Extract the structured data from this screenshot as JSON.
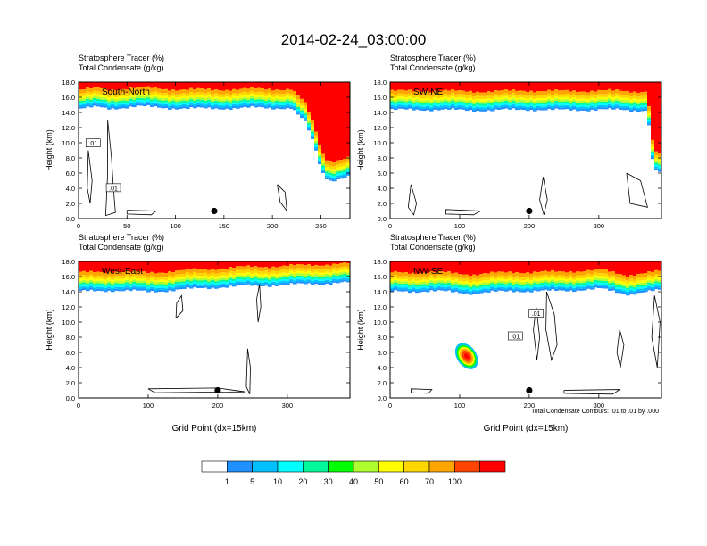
{
  "page_title": "2014-02-24_03:00:00",
  "colors": {
    "frame": "#000000",
    "contour": "#000000",
    "dot": "#000000"
  },
  "chart_data": [
    {
      "type": "heatmap",
      "panel": "South-North",
      "label": "South-North",
      "header_line1": "Stratosphere Tracer   (%)",
      "header_line2": "Total Condensate   (g/kg)",
      "ylabel": "Height (km)",
      "xlabel": "",
      "xlim": [
        0,
        280
      ],
      "ylim": [
        0,
        18
      ],
      "xticks": [
        0,
        50,
        100,
        150,
        200,
        250
      ],
      "yticks": [
        "0.0",
        "2.0",
        "4.0",
        "6.0",
        "8.0",
        "10.0",
        "12.0",
        "14.0",
        "16.0",
        "18.0"
      ],
      "tracer_base_km": [
        [
          0,
          14.5
        ],
        [
          20,
          14.7
        ],
        [
          30,
          14.5
        ],
        [
          60,
          14.8
        ],
        [
          90,
          14.6
        ],
        [
          130,
          14.5
        ],
        [
          170,
          14.6
        ],
        [
          200,
          14.6
        ],
        [
          220,
          14.6
        ],
        [
          235,
          12.5
        ],
        [
          245,
          9.0
        ],
        [
          250,
          6.5
        ],
        [
          258,
          5.0
        ],
        [
          270,
          5.3
        ],
        [
          280,
          5.6
        ]
      ],
      "contour_labels": [
        ".01",
        ".01"
      ],
      "marker_x": 140,
      "marker_y": 1.0
    },
    {
      "type": "heatmap",
      "panel": "SW-NE",
      "label": "SW-NE",
      "header_line1": "Stratosphere Tracer   (%)",
      "header_line2": "Total Condensate   (g/kg)",
      "ylabel": "Height (km)",
      "xlabel": "",
      "xlim": [
        0,
        390
      ],
      "ylim": [
        0,
        18
      ],
      "xticks": [
        0,
        100,
        200,
        300
      ],
      "yticks": [
        "0.0",
        "2.0",
        "4.0",
        "6.0",
        "8.0",
        "10.0",
        "12.0",
        "14.0",
        "16.0",
        "18.0"
      ],
      "tracer_base_km": [
        [
          0,
          14.3
        ],
        [
          50,
          14.4
        ],
        [
          100,
          14.3
        ],
        [
          150,
          14.3
        ],
        [
          200,
          14.4
        ],
        [
          250,
          14.3
        ],
        [
          300,
          14.4
        ],
        [
          340,
          14.3
        ],
        [
          370,
          14.3
        ],
        [
          378,
          7.0
        ],
        [
          385,
          6.0
        ],
        [
          390,
          6.0
        ]
      ],
      "contour_labels": [],
      "marker_x": 200,
      "marker_y": 1.0
    },
    {
      "type": "heatmap",
      "panel": "West-East",
      "label": "West-East",
      "header_line1": "Stratosphere Tracer   (%)",
      "header_line2": "Total Condensate   (g/kg)",
      "ylabel": "Height (km)",
      "xlabel": "Grid Point (dx=15km)",
      "xlim": [
        0,
        390
      ],
      "ylim": [
        0,
        18
      ],
      "xticks": [
        0,
        100,
        200,
        300
      ],
      "yticks": [
        "0.0",
        "2.0",
        "4.0",
        "6.0",
        "8.0",
        "10.0",
        "12.0",
        "14.0",
        "16.0",
        "18.0"
      ],
      "tracer_base_km": [
        [
          0,
          14.0
        ],
        [
          50,
          14.2
        ],
        [
          100,
          14.0
        ],
        [
          150,
          14.3
        ],
        [
          200,
          14.6
        ],
        [
          250,
          14.8
        ],
        [
          300,
          14.9
        ],
        [
          350,
          15.1
        ],
        [
          390,
          15.2
        ]
      ],
      "contour_labels": [],
      "marker_x": 200,
      "marker_y": 1.0
    },
    {
      "type": "heatmap",
      "panel": "NW-SE",
      "label": "NW-SE",
      "header_line1": "Stratosphere Tracer   (%)",
      "header_line2": "Total Condensate   (g/kg)",
      "ylabel": "Height (km)",
      "xlabel": "Grid Point (dx=15km)",
      "xlim": [
        0,
        390
      ],
      "ylim": [
        0,
        18
      ],
      "xticks": [
        0,
        100,
        200,
        300
      ],
      "yticks": [
        "0.0",
        "2.0",
        "4.0",
        "6.0",
        "8.0",
        "10.0",
        "12.0",
        "14.0",
        "16.0",
        "18.0"
      ],
      "tracer_base_km": [
        [
          0,
          14.0
        ],
        [
          60,
          14.1
        ],
        [
          120,
          13.8
        ],
        [
          180,
          14.1
        ],
        [
          240,
          14.1
        ],
        [
          300,
          14.4
        ],
        [
          340,
          13.7
        ],
        [
          390,
          14.2
        ]
      ],
      "blob_center": [
        110,
        5.5
      ],
      "contour_labels": [
        ".01",
        ".01"
      ],
      "marker_x": 200,
      "marker_y": 1.0,
      "footnote": "Total Condensate Contours: .01 to .01 by .000"
    }
  ],
  "colorbar": {
    "colors": [
      "#ffffff",
      "#1e90ff",
      "#00bfff",
      "#00ffff",
      "#00fa9a",
      "#00ff00",
      "#adff2f",
      "#ffff00",
      "#ffd700",
      "#ffa500",
      "#ff4500",
      "#ff0000"
    ],
    "labels": [
      "1",
      "5",
      "10",
      "20",
      "30",
      "40",
      "50",
      "60",
      "70",
      "100"
    ]
  }
}
